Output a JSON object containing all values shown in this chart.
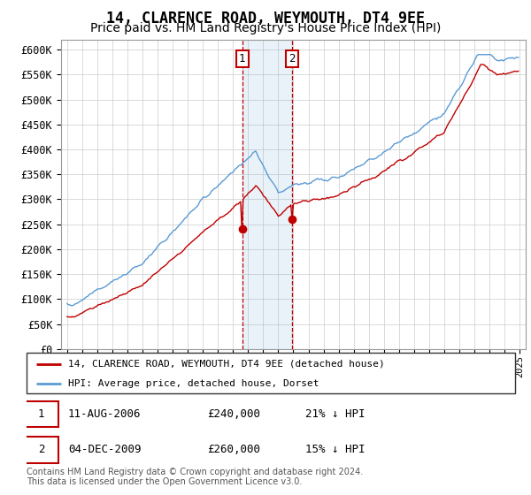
{
  "title": "14, CLARENCE ROAD, WEYMOUTH, DT4 9EE",
  "subtitle": "Price paid vs. HM Land Registry's House Price Index (HPI)",
  "title_fontsize": 12,
  "subtitle_fontsize": 10,
  "ylim": [
    0,
    620000
  ],
  "yticks": [
    0,
    50000,
    100000,
    150000,
    200000,
    250000,
    300000,
    350000,
    400000,
    450000,
    500000,
    550000,
    600000
  ],
  "ytick_labels": [
    "£0",
    "£50K",
    "£100K",
    "£150K",
    "£200K",
    "£250K",
    "£300K",
    "£350K",
    "£400K",
    "£450K",
    "£500K",
    "£550K",
    "£600K"
  ],
  "hpi_color": "#5b9bd5",
  "price_color": "#c00000",
  "sale1_date": 2006.608,
  "sale2_date": 2009.921,
  "sale1_price": 240000,
  "sale2_price": 260000,
  "sale1_label": "1",
  "sale2_label": "2",
  "legend_label_red": "14, CLARENCE ROAD, WEYMOUTH, DT4 9EE (detached house)",
  "legend_label_blue": "HPI: Average price, detached house, Dorset",
  "table_row1": [
    "1",
    "11-AUG-2006",
    "£240,000",
    "21% ↓ HPI"
  ],
  "table_row2": [
    "2",
    "04-DEC-2009",
    "£260,000",
    "15% ↓ HPI"
  ],
  "footnote1": "Contains HM Land Registry data © Crown copyright and database right 2024.",
  "footnote2": "This data is licensed under the Open Government Licence v3.0.",
  "background_color": "#ffffff",
  "grid_color": "#cccccc"
}
